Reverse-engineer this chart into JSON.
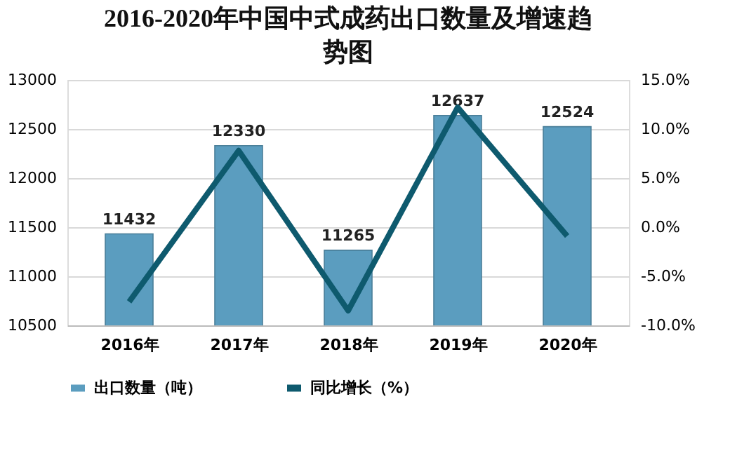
{
  "chart_data": {
    "type": "bar",
    "title": "2016-2020年中国中式成药出口数量及增速趋势图",
    "categories": [
      "2016年",
      "2017年",
      "2018年",
      "2019年",
      "2020年"
    ],
    "series": [
      {
        "name": "出口数量（吨）",
        "color": "#5b9dbf",
        "values": [
          11432,
          12330,
          11265,
          12637,
          12524
        ],
        "value_labels": [
          "11432",
          "12330",
          "11265",
          "12637",
          "12524"
        ]
      },
      {
        "name": "同比增长（%）",
        "type": "line",
        "axis": "y2",
        "color": "#0e5a6e",
        "values": [
          -7.6,
          7.8,
          -8.5,
          12.2,
          -0.9
        ]
      }
    ],
    "ylim": [
      10500,
      13000
    ],
    "yticks": [
      10500,
      11000,
      11500,
      12000,
      12500,
      13000
    ],
    "y2lim": [
      -10,
      15
    ],
    "y2ticks": [
      {
        "value": -10,
        "label": "-10.0%"
      },
      {
        "value": -5,
        "label": "-5.0%"
      },
      {
        "value": 0,
        "label": "0.0%"
      },
      {
        "value": 5,
        "label": "5.0%"
      },
      {
        "value": 10,
        "label": "10.0%"
      },
      {
        "value": 15,
        "label": "15.0%"
      }
    ],
    "grid": "y",
    "legend": "bottom",
    "marker": "none",
    "line_style": "solid"
  }
}
